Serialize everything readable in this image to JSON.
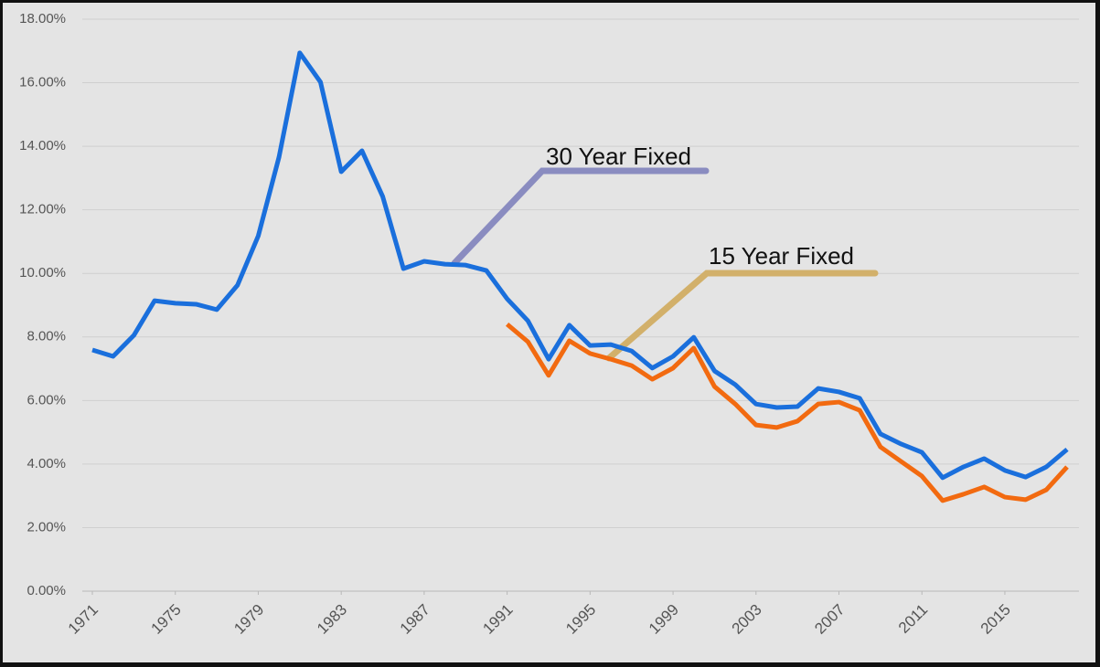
{
  "chart_data": {
    "type": "line",
    "x": [
      1971,
      1972,
      1973,
      1974,
      1975,
      1976,
      1977,
      1978,
      1979,
      1980,
      1981,
      1982,
      1983,
      1984,
      1985,
      1986,
      1987,
      1988,
      1989,
      1990,
      1991,
      1992,
      1993,
      1994,
      1995,
      1996,
      1997,
      1998,
      1999,
      2000,
      2001,
      2002,
      2003,
      2004,
      2005,
      2006,
      2007,
      2008,
      2009,
      2010,
      2011,
      2012,
      2013,
      2014,
      2015,
      2016,
      2017,
      2018
    ],
    "series": [
      {
        "name": "30 Year Fixed",
        "color": "#1a6fdc",
        "callout_color": "#8a8cc0",
        "values": [
          7.59,
          7.39,
          8.05,
          9.14,
          9.06,
          9.03,
          8.86,
          9.63,
          11.18,
          13.66,
          16.94,
          16.02,
          13.2,
          13.86,
          12.42,
          10.15,
          10.38,
          10.29,
          10.26,
          10.09,
          9.2,
          8.51,
          7.3,
          8.37,
          7.73,
          7.76,
          7.56,
          7.02,
          7.39,
          7.99,
          6.93,
          6.5,
          5.89,
          5.78,
          5.81,
          6.38,
          6.27,
          6.07,
          4.95,
          4.63,
          4.37,
          3.57,
          3.91,
          4.17,
          3.8,
          3.59,
          3.91,
          4.46
        ]
      },
      {
        "name": "15 Year Fixed",
        "color": "#f26a10",
        "callout_color": "#d2b06a",
        "values": [
          null,
          null,
          null,
          null,
          null,
          null,
          null,
          null,
          null,
          null,
          null,
          null,
          null,
          null,
          null,
          null,
          null,
          null,
          null,
          null,
          8.4,
          7.85,
          6.79,
          7.88,
          7.48,
          7.3,
          7.1,
          6.67,
          7.02,
          7.65,
          6.44,
          5.89,
          5.23,
          5.15,
          5.35,
          5.89,
          5.95,
          5.69,
          4.54,
          4.08,
          3.62,
          2.85,
          3.05,
          3.28,
          2.96,
          2.88,
          3.19,
          3.91
        ]
      }
    ],
    "xlim": [
      1971,
      2018
    ],
    "xticks": [
      1971,
      1975,
      1979,
      1983,
      1987,
      1991,
      1995,
      1999,
      2003,
      2007,
      2011,
      2015
    ],
    "ylim": [
      0,
      18
    ],
    "yticks": [
      {
        "value": 0,
        "label": "0.00%"
      },
      {
        "value": 2,
        "label": "2.00%"
      },
      {
        "value": 4,
        "label": "4.00%"
      },
      {
        "value": 6,
        "label": "6.00%"
      },
      {
        "value": 8,
        "label": "8.00%"
      },
      {
        "value": 10,
        "label": "10.00%"
      },
      {
        "value": 12,
        "label": "12.00%"
      },
      {
        "value": 14,
        "label": "14.00%"
      },
      {
        "value": 16,
        "label": "16.00%"
      },
      {
        "value": 18,
        "label": "18.00%"
      }
    ],
    "grid": true
  }
}
